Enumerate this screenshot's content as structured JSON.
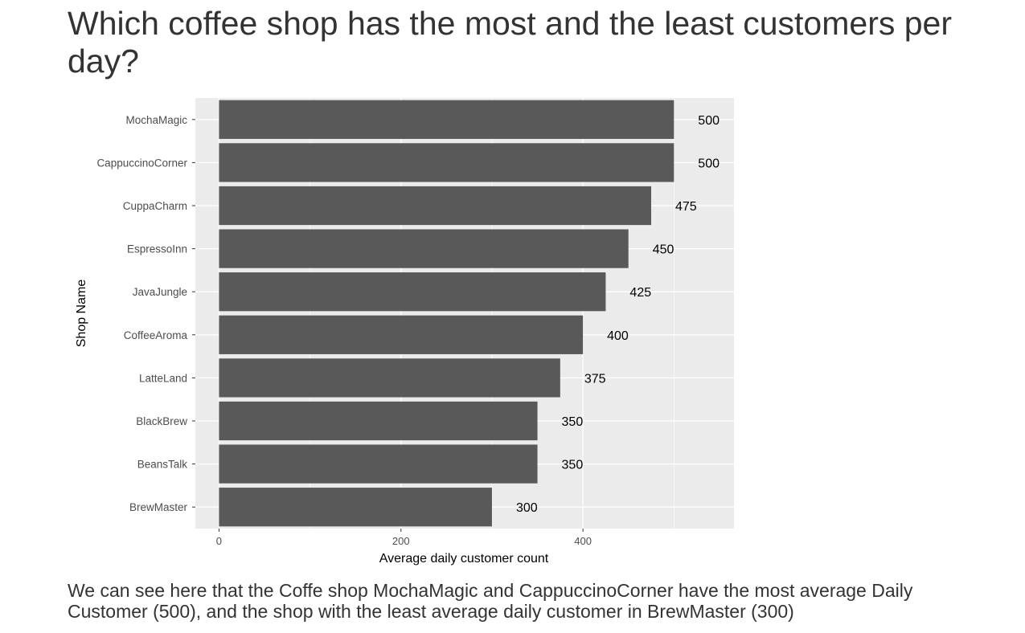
{
  "page": {
    "title": "Which coffee shop has the most and the least customers per day?",
    "caption": "We can see here that the Coffe shop MochaMagic and CappuccinoCorner have the most average Daily Customer (500), and the shop with the least average daily customer in BrewMaster (300)"
  },
  "chart_data": {
    "type": "bar",
    "orientation": "horizontal",
    "categories": [
      "MochaMagic",
      "CappuccinoCorner",
      "CuppaCharm",
      "EspressoInn",
      "JavaJungle",
      "CoffeeAroma",
      "LatteLand",
      "BlackBrew",
      "BeansTalk",
      "BrewMaster"
    ],
    "values": [
      500,
      500,
      475,
      450,
      425,
      400,
      375,
      350,
      350,
      300
    ],
    "data_labels": [
      "500",
      "500",
      "475",
      "450",
      "425",
      "400",
      "375",
      "350",
      "350",
      "300"
    ],
    "xlabel": "Average daily customer count",
    "ylabel": "Shop Name",
    "xlim": [
      -26,
      566
    ],
    "xticks": [
      0,
      200,
      400
    ],
    "xtick_labels": [
      "0",
      "200",
      "400"
    ],
    "grid": true,
    "legend": "none",
    "colors": {
      "bar": "#595959",
      "panel": "#ebebeb",
      "grid": "#ffffff",
      "axis_text": "#4d4d4d"
    }
  }
}
